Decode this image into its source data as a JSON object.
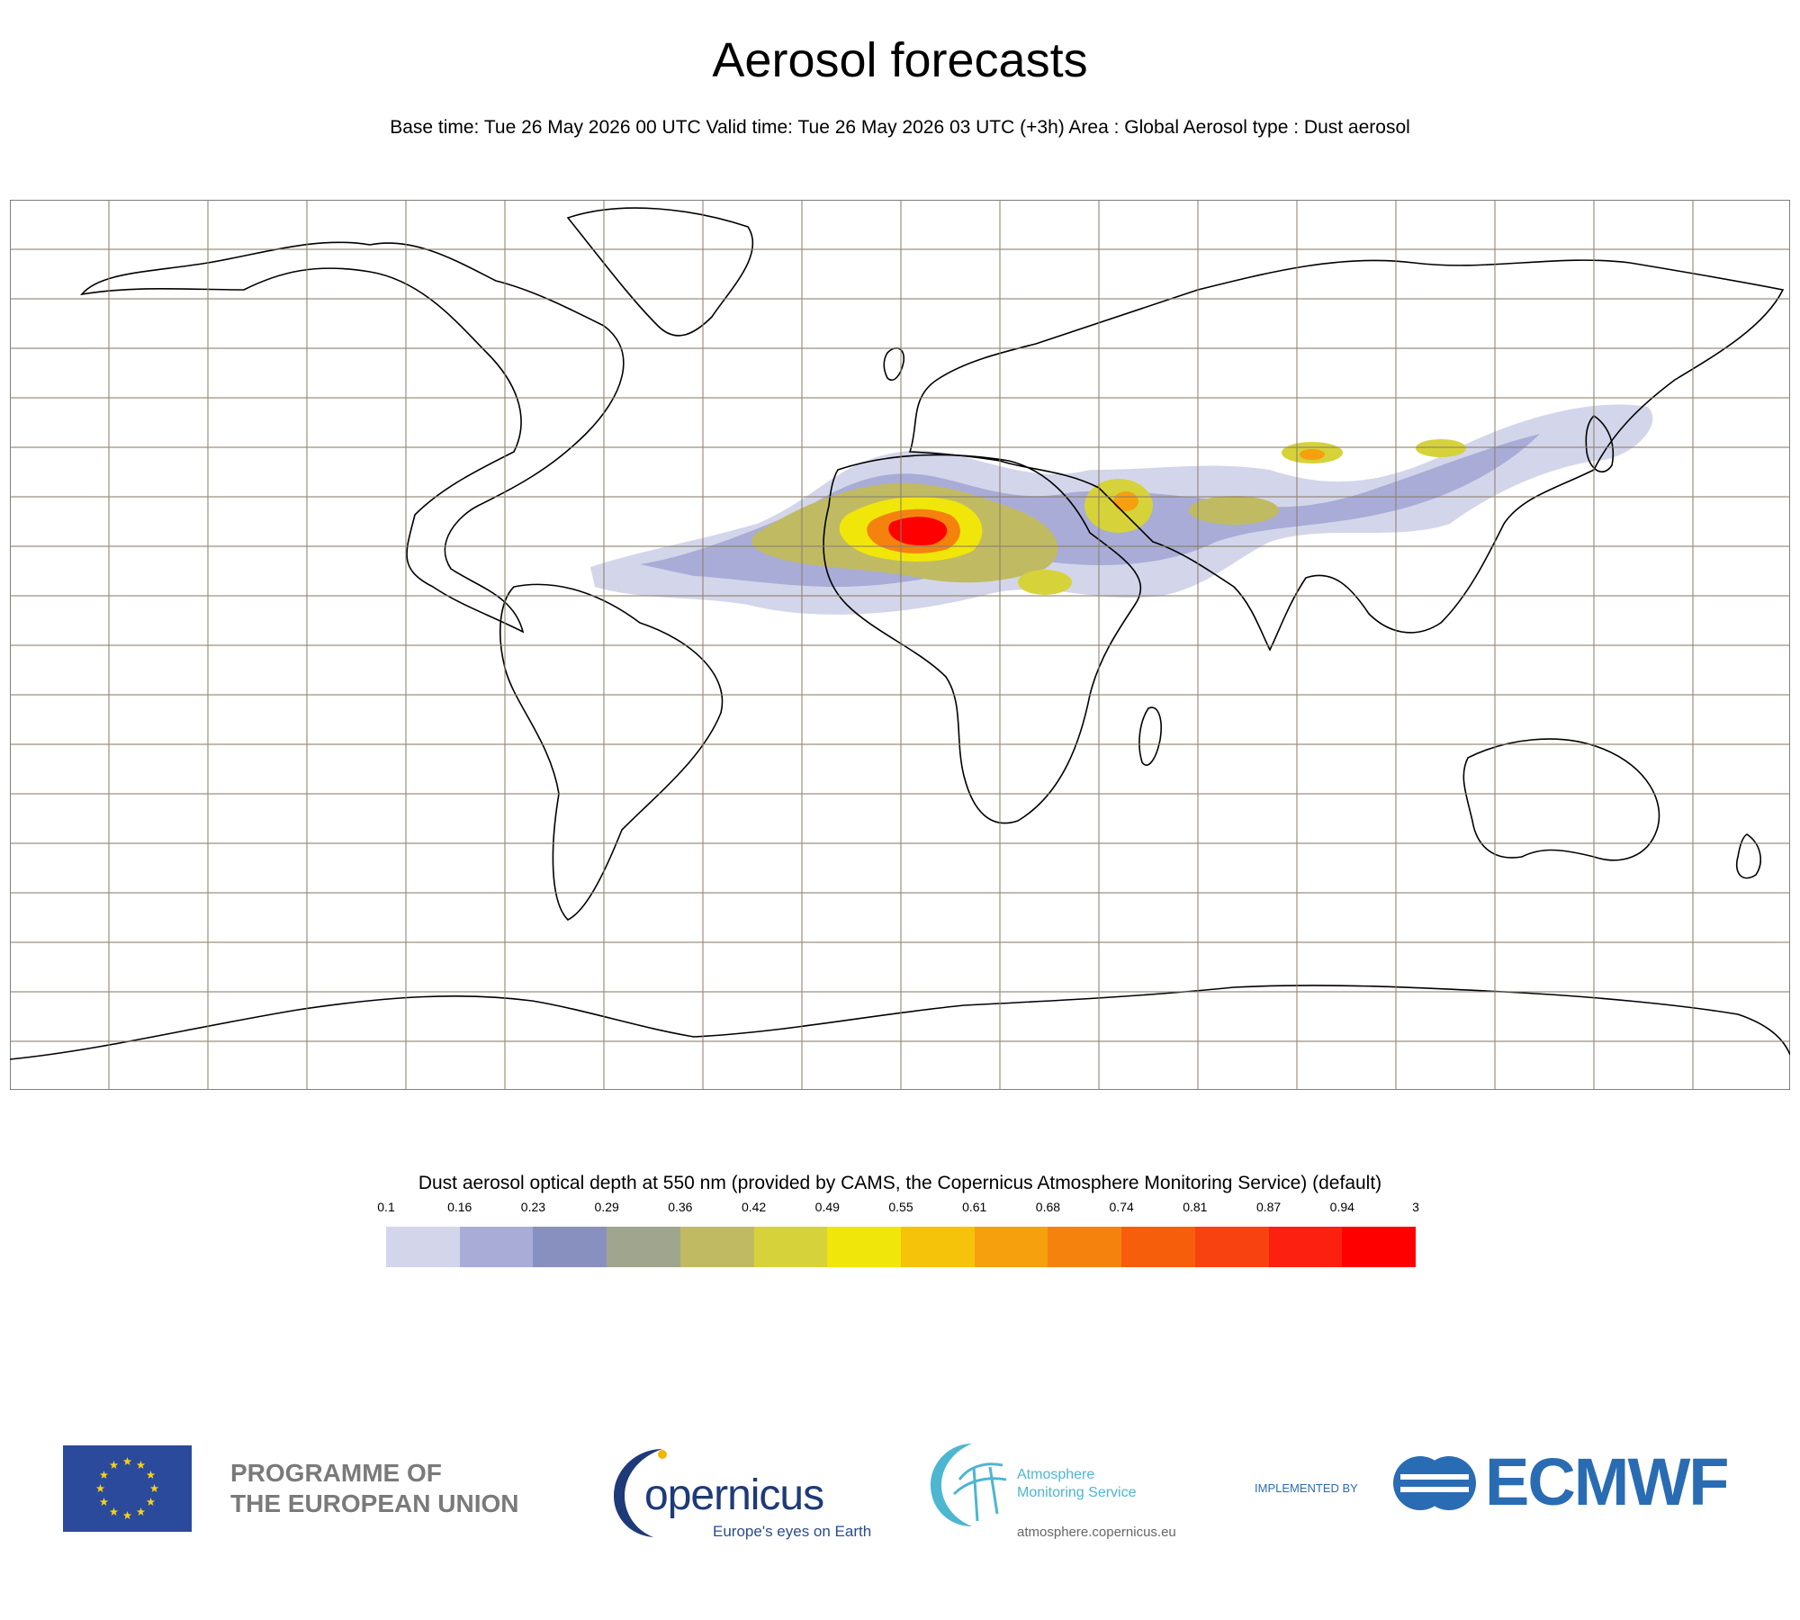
{
  "header": {
    "title": "Aerosol forecasts",
    "subtitle": "Base time: Tue 26 May 2026 00 UTC Valid time: Tue 26 May 2026 03 UTC (+3h) Area : Global Aerosol type : Dust aerosol"
  },
  "map": {
    "projection": "plate-carree",
    "extent": {
      "lon": [
        -180,
        180
      ],
      "lat": [
        -90,
        90
      ]
    },
    "graticule_step_deg": 20,
    "field": "dust-aerosol-optical-depth",
    "colors": {
      "land_outline": "#000000",
      "graticule": "#8a7d6b",
      "background": "#ffffff"
    }
  },
  "legend": {
    "title": "Dust aerosol optical depth at 550 nm (provided by CAMS, the Copernicus Atmosphere Monitoring Service) (default)",
    "ticks": [
      "0.1",
      "0.16",
      "0.23",
      "0.29",
      "0.36",
      "0.42",
      "0.49",
      "0.55",
      "0.61",
      "0.68",
      "0.74",
      "0.81",
      "0.87",
      "0.94",
      "3"
    ],
    "colors": [
      "#d3d6ea",
      "#a8acd6",
      "#8890c0",
      "#a0a58e",
      "#c0bb63",
      "#d6d23a",
      "#f1e60a",
      "#f4c30a",
      "#f5a00c",
      "#f6820e",
      "#f75e0c",
      "#f84210",
      "#fb2010",
      "#ff0000"
    ]
  },
  "footer": {
    "eu_text_line1": "PROGRAMME OF",
    "eu_text_line2": "THE EUROPEAN UNION",
    "copernicus_wordmark": "opernicus",
    "copernicus_tagline": "Europe's eyes on Earth",
    "cams_line1": "Atmosphere",
    "cams_line2": "Monitoring Service",
    "cams_url": "atmosphere.copernicus.eu",
    "implemented_by": "IMPLEMENTED BY",
    "ecmwf_wordmark": "ECMWF",
    "colors": {
      "eu_blue": "#2b4a9c",
      "eu_star": "#f7d117",
      "copernicus": "#1e3a78",
      "cams": "#4db6d0",
      "ecmwf": "#2a6cb3"
    }
  }
}
